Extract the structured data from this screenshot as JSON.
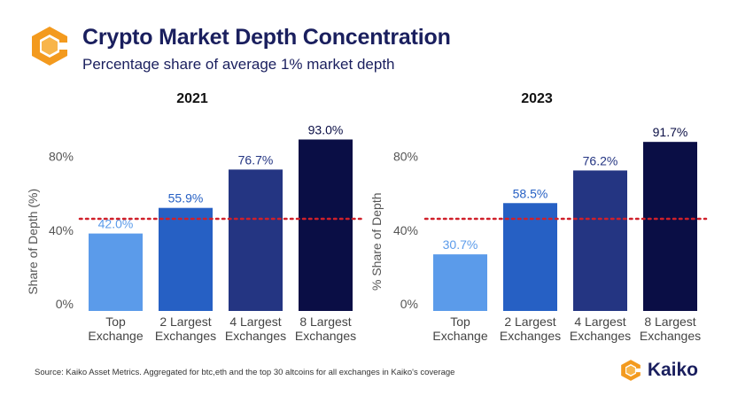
{
  "title": "Crypto Market Depth Concentration",
  "subtitle": "Percentage share of average 1% market depth",
  "source": "Source: Kaiko Asset Metrics. Aggregated for btc,eth and the top 30 altcoins for all exchanges in Kaiko's coverage",
  "brand": "Kaiko",
  "colors": {
    "title": "#1a1f5e",
    "bars": [
      "#5b9bea",
      "#2660c4",
      "#243582",
      "#0a0e45"
    ],
    "label_colors": [
      "#5b9bea",
      "#2660c4",
      "#243582",
      "#0a0e45"
    ],
    "reference_line": "#d0202a",
    "logo": "#f39a1e"
  },
  "chart_data": [
    {
      "type": "bar",
      "title": "2021",
      "ylabel": "Share of Depth (%)",
      "categories": [
        "Top\nExchange",
        "2 Largest\nExchanges",
        "4 Largest\nExchanges",
        "8 Largest\nExchanges"
      ],
      "values": [
        42.0,
        55.9,
        76.7,
        93.0
      ],
      "value_labels": [
        "42.0%",
        "55.9%",
        "76.7%",
        "93.0%"
      ],
      "yticks": [
        "0%",
        "40%",
        "80%"
      ],
      "ytick_values": [
        0,
        40,
        80
      ],
      "ylim": [
        0,
        100
      ],
      "reference_line": 50,
      "grid": false
    },
    {
      "type": "bar",
      "title": "2023",
      "ylabel": "% Share of Depth",
      "categories": [
        "Top\nExchange",
        "2 Largest\nExchanges",
        "4 Largest\nExchanges",
        "8 Largest\nExchanges"
      ],
      "values": [
        30.7,
        58.5,
        76.2,
        91.7
      ],
      "value_labels": [
        "30.7%",
        "58.5%",
        "76.2%",
        "91.7%"
      ],
      "yticks": [
        "0%",
        "40%",
        "80%"
      ],
      "ytick_values": [
        0,
        40,
        80
      ],
      "ylim": [
        0,
        100
      ],
      "reference_line": 50,
      "grid": false
    }
  ]
}
